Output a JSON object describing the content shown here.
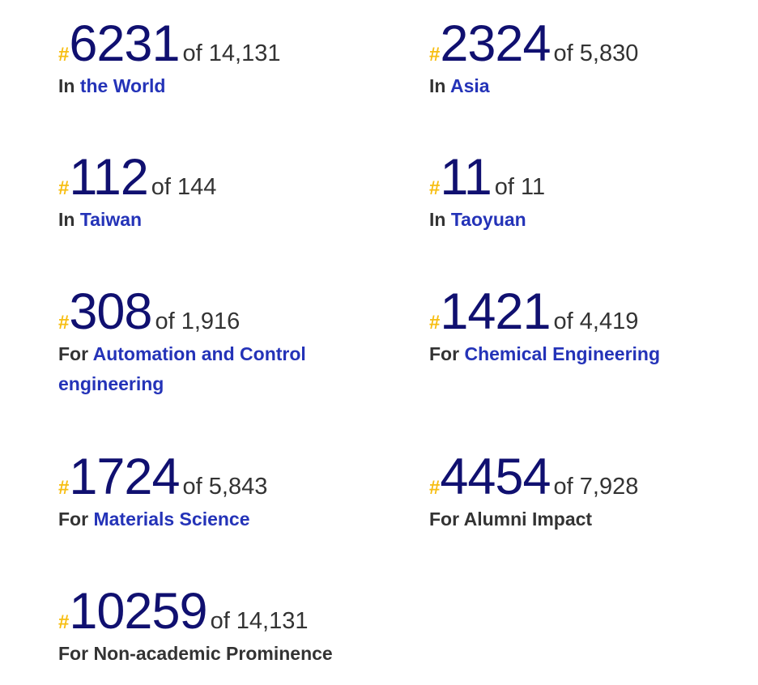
{
  "rankings": [
    {
      "hash": "#",
      "rank": "6231",
      "of": "of 14,131",
      "prefix": "In",
      "link": "the World"
    },
    {
      "hash": "#",
      "rank": "2324",
      "of": "of 5,830",
      "prefix": "In",
      "link": "Asia"
    },
    {
      "hash": "#",
      "rank": "112",
      "of": "of 144",
      "prefix": "In",
      "link": "Taiwan"
    },
    {
      "hash": "#",
      "rank": "11",
      "of": "of 11",
      "prefix": "In",
      "link": "Taoyuan"
    },
    {
      "hash": "#",
      "rank": "308",
      "of": "of 1,916",
      "prefix": "For",
      "link": "Automation and Control engineering"
    },
    {
      "hash": "#",
      "rank": "1421",
      "of": "of 4,419",
      "prefix": "For",
      "link": "Chemical Engineering"
    },
    {
      "hash": "#",
      "rank": "1724",
      "of": "of 5,843",
      "prefix": "For",
      "link": "Materials Science"
    },
    {
      "hash": "#",
      "rank": "4454",
      "of": "of 7,928",
      "prefix": "For",
      "text": "Alumni Impact"
    },
    {
      "hash": "#",
      "rank": "10259",
      "of": "of 14,131",
      "prefix": "For",
      "text": "Non-academic Prominence"
    }
  ],
  "colors": {
    "hash": "#f7be12",
    "rank": "#101070",
    "link": "#2433b8",
    "text": "#333333"
  }
}
